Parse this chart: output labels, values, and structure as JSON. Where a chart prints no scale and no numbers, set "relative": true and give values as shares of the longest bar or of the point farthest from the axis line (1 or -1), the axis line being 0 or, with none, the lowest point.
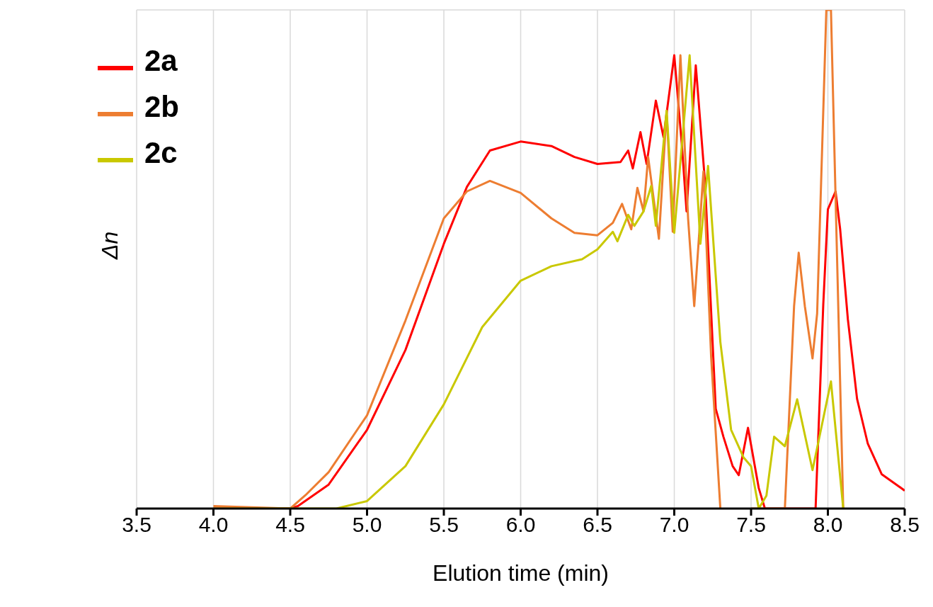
{
  "chart_data": {
    "type": "line",
    "xlabel": "Elution time (min)",
    "ylabel": "Δn",
    "relative": true,
    "xlim": [
      3.5,
      8.5
    ],
    "xticks": [
      {
        "value": 3.5,
        "label": "3.5"
      },
      {
        "value": 4,
        "label": "4.0"
      },
      {
        "value": 4.5,
        "label": "4.5"
      },
      {
        "value": 5,
        "label": "5.0"
      },
      {
        "value": 5.5,
        "label": "5.5"
      },
      {
        "value": 6,
        "label": "6.0"
      },
      {
        "value": 6.5,
        "label": "6.5"
      },
      {
        "value": 7,
        "label": "7.0"
      },
      {
        "value": 7.5,
        "label": "7.5"
      },
      {
        "value": 8,
        "label": "8.0"
      },
      {
        "value": 8.5,
        "label": "8.5"
      }
    ],
    "grid": true,
    "legend": "top left",
    "marker": "none",
    "line_style": "solid",
    "series": [
      {
        "name": "2a",
        "color": "#ff0000",
        "x": [
          4.0,
          4.5,
          4.55,
          4.75,
          5.0,
          5.25,
          5.5,
          5.65,
          5.8,
          6.0,
          6.2,
          6.35,
          6.5,
          6.65,
          6.7,
          6.73,
          6.78,
          6.82,
          6.88,
          6.93,
          7.0,
          7.05,
          7.08,
          7.14,
          7.2,
          7.27,
          7.32,
          7.38,
          7.42,
          7.48,
          7.55,
          7.59,
          7.92,
          7.97,
          8.0,
          8.05,
          8.08,
          8.13,
          8.19,
          8.26,
          8.35,
          8.5
        ],
        "values": [
          0,
          0,
          0.005,
          0.048,
          0.158,
          0.318,
          0.531,
          0.645,
          0.718,
          0.736,
          0.727,
          0.705,
          0.691,
          0.695,
          0.718,
          0.682,
          0.755,
          0.691,
          0.818,
          0.745,
          0.909,
          0.727,
          0.596,
          0.889,
          0.655,
          0.2,
          0.144,
          0.085,
          0.067,
          0.162,
          0.041,
          0,
          0,
          0.409,
          0.6,
          0.636,
          0.56,
          0.38,
          0.22,
          0.13,
          0.069,
          0.036
        ]
      },
      {
        "name": "2b",
        "color": "#ed7d31",
        "x": [
          4.0,
          4.5,
          4.6,
          4.75,
          5.0,
          5.25,
          5.5,
          5.65,
          5.8,
          6.0,
          6.2,
          6.35,
          6.5,
          6.6,
          6.66,
          6.72,
          6.76,
          6.8,
          6.83,
          6.9,
          6.95,
          6.99,
          7.04,
          7.09,
          7.13,
          7.19,
          7.24,
          7.3,
          7.32,
          7.48,
          7.5,
          7.72,
          7.78,
          7.81,
          7.85,
          7.9,
          7.93,
          7.99,
          8.02,
          8.1
        ],
        "values": [
          0.005,
          0,
          0.027,
          0.073,
          0.187,
          0.377,
          0.582,
          0.636,
          0.657,
          0.633,
          0.582,
          0.553,
          0.548,
          0.573,
          0.611,
          0.56,
          0.643,
          0.596,
          0.705,
          0.541,
          0.796,
          0.555,
          0.909,
          0.582,
          0.406,
          0.676,
          0.304,
          0,
          null,
          null,
          0,
          0,
          0.406,
          0.513,
          0.406,
          0.301,
          0.391,
          1,
          1,
          0
        ]
      },
      {
        "name": "2c",
        "color": "#c9c800",
        "x": [
          4.0,
          4.8,
          5.0,
          5.25,
          5.5,
          5.75,
          6.0,
          6.2,
          6.4,
          6.5,
          6.6,
          6.63,
          6.7,
          6.74,
          6.8,
          6.85,
          6.88,
          6.95,
          7.0,
          7.1,
          7.17,
          7.22,
          7.3,
          7.37,
          7.45,
          7.5,
          7.55,
          7.6,
          7.65,
          7.72,
          7.8,
          7.9,
          8.02,
          8.1
        ],
        "values": [
          0,
          0,
          0.015,
          0.085,
          0.209,
          0.364,
          0.457,
          0.486,
          0.5,
          0.52,
          0.555,
          0.536,
          0.589,
          0.567,
          0.596,
          0.647,
          0.567,
          0.798,
          0.553,
          0.909,
          0.531,
          0.687,
          0.334,
          0.158,
          0.103,
          0.085,
          0,
          0.026,
          0.144,
          0.125,
          0.219,
          0.077,
          0.255,
          0
        ]
      }
    ]
  }
}
